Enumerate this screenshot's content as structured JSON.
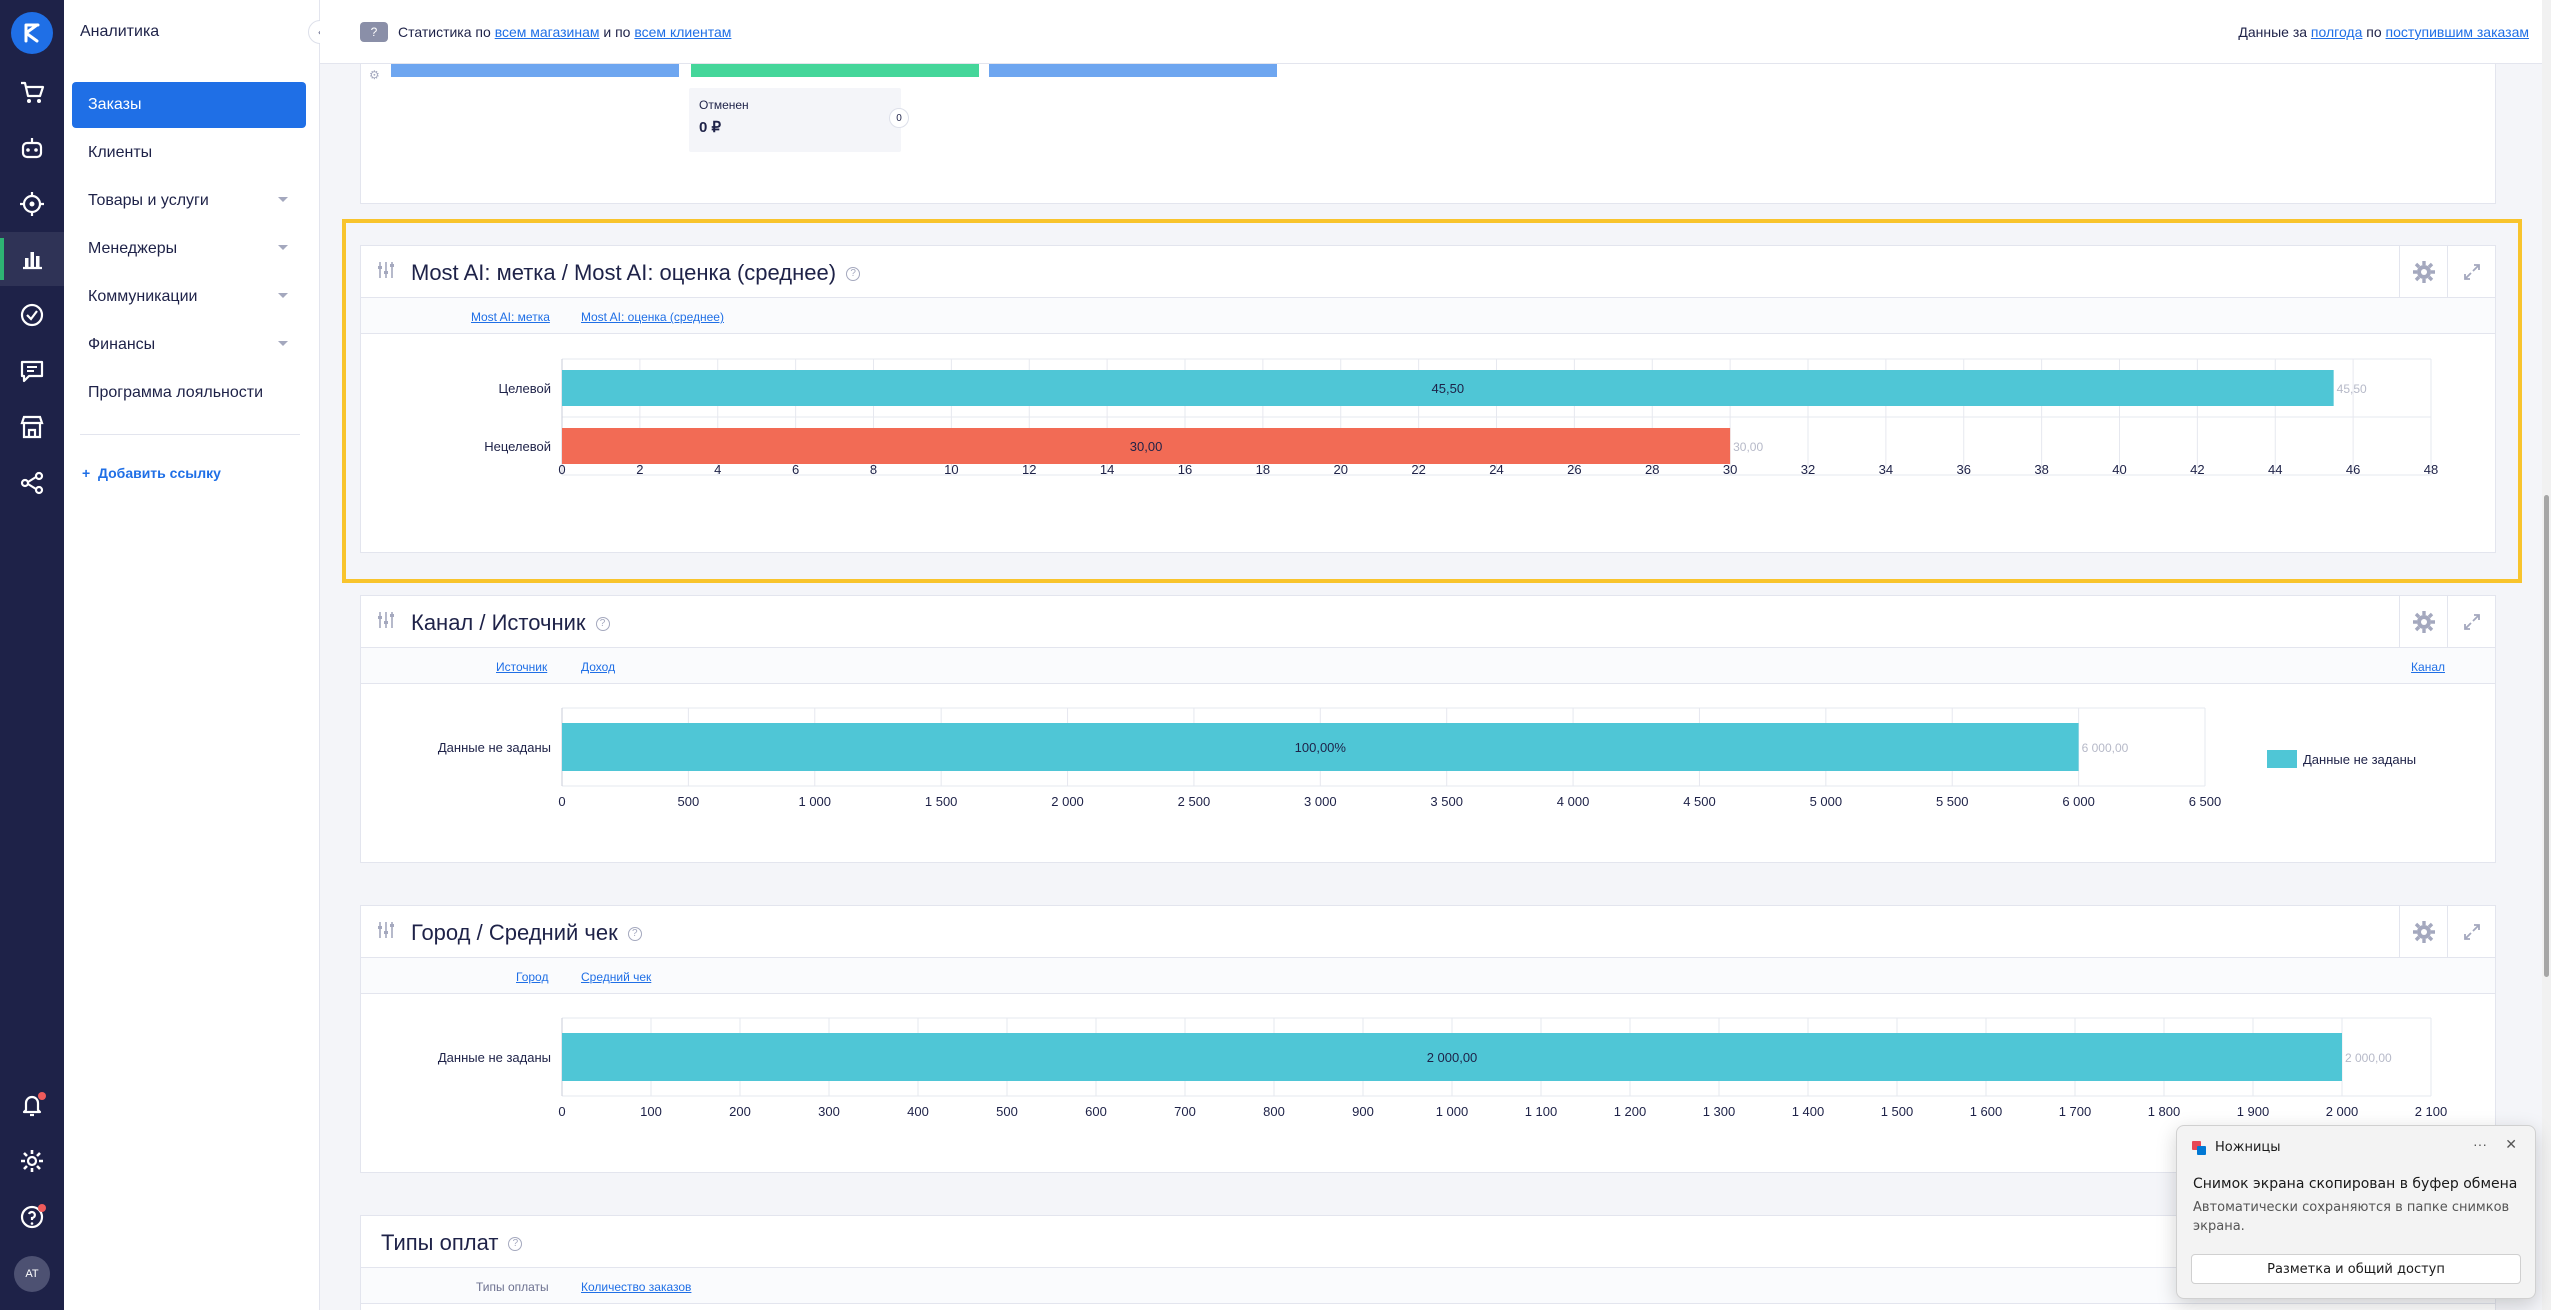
{
  "sidebar": {
    "title": "Аналитика",
    "items": [
      {
        "label": "Заказы",
        "active": true,
        "submenu": false
      },
      {
        "label": "Клиенты",
        "active": false,
        "submenu": false
      },
      {
        "label": "Товары и услуги",
        "active": false,
        "submenu": true
      },
      {
        "label": "Менеджеры",
        "active": false,
        "submenu": true
      },
      {
        "label": "Коммуникации",
        "active": false,
        "submenu": true
      },
      {
        "label": "Финансы",
        "active": false,
        "submenu": true
      },
      {
        "label": "Программа лояльности",
        "active": false,
        "submenu": false
      }
    ],
    "add_link_label": "Добавить ссылку"
  },
  "rail": {
    "icons": [
      "logo-icon",
      "cart-icon",
      "bot-icon",
      "target-icon",
      "chart-icon",
      "check-circle-icon",
      "chat-icon",
      "store-icon",
      "share-icon",
      "bell-icon",
      "gear-icon",
      "help-icon"
    ],
    "avatar_initials": "AT"
  },
  "topbar": {
    "help_label": "?",
    "left_prefix": "Статистика по",
    "left_link1": "всем магазинам",
    "left_and": "и по",
    "left_link2": "всем клиентам",
    "right_prefix": "Данные за",
    "right_link1": "полгода",
    "right_mid": "по",
    "right_link2": "поступившим заказам"
  },
  "top_strip": {
    "tooltip_label": "Отменен",
    "tooltip_value": "0 ₽",
    "badge": "0"
  },
  "cards": [
    {
      "title": "Most AI: метка / Most AI: оценка (среднее)",
      "sub_links": [
        "Most AI: метка",
        "Most AI: оценка (среднее)"
      ]
    },
    {
      "title": "Канал / Источник",
      "sub_links": [
        "Источник",
        "Доход"
      ],
      "sub_right_link": "Канал",
      "legend": [
        "Данные не заданы"
      ]
    },
    {
      "title": "Город / Средний чек",
      "sub_links": [
        "Город",
        "Средний чек"
      ]
    },
    {
      "title": "Типы оплат",
      "sub_plain": "Типы оплаты",
      "sub_links": [
        "Количество заказов"
      ]
    }
  ],
  "colors": {
    "accent": "#1f6fe6",
    "rail": "#1e2248",
    "highlight": "#f8c42d",
    "bar_teal": "#4fc6d6",
    "bar_red": "#f26b55",
    "strip_blue": "#6ea6f0",
    "strip_green": "#45d69a"
  },
  "chart_data": [
    {
      "type": "bar",
      "orientation": "horizontal",
      "categories": [
        "Целевой",
        "Нецелевой"
      ],
      "values": [
        45.5,
        30.0
      ],
      "inner_labels": [
        "45,50",
        "30,00"
      ],
      "outer_labels": [
        "45,50",
        "30,00"
      ],
      "bar_colors": [
        "#4fc6d6",
        "#f26b55"
      ],
      "ticks": [
        "0",
        "2",
        "4",
        "6",
        "8",
        "10",
        "12",
        "14",
        "16",
        "18",
        "20",
        "22",
        "24",
        "26",
        "28",
        "30",
        "32",
        "34",
        "36",
        "38",
        "40",
        "42",
        "44",
        "46",
        "48"
      ],
      "xlim": [
        0,
        48
      ],
      "grid": true
    },
    {
      "type": "bar",
      "orientation": "horizontal",
      "categories": [
        "Данные не заданы"
      ],
      "values": [
        6000
      ],
      "inner_labels": [
        "100,00%"
      ],
      "outer_labels": [
        "6 000,00"
      ],
      "bar_colors": [
        "#4fc6d6"
      ],
      "ticks": [
        "0",
        "500",
        "1 000",
        "1 500",
        "2 000",
        "2 500",
        "3 000",
        "3 500",
        "4 000",
        "4 500",
        "5 000",
        "5 500",
        "6 000",
        "6 500"
      ],
      "xlim": [
        0,
        6500
      ],
      "grid": true,
      "legend": [
        "Данные не заданы"
      ],
      "legend_position": "right"
    },
    {
      "type": "bar",
      "orientation": "horizontal",
      "categories": [
        "Данные не заданы"
      ],
      "values": [
        2000
      ],
      "inner_labels": [
        "2 000,00"
      ],
      "outer_labels": [
        "2 000,00"
      ],
      "bar_colors": [
        "#4fc6d6"
      ],
      "ticks": [
        "0",
        "100",
        "200",
        "300",
        "400",
        "500",
        "600",
        "700",
        "800",
        "900",
        "1 000",
        "1 100",
        "1 200",
        "1 300",
        "1 400",
        "1 500",
        "1 600",
        "1 700",
        "1 800",
        "1 900",
        "2 000",
        "2 100"
      ],
      "xlim": [
        0,
        2100
      ],
      "grid": true
    }
  ],
  "toast": {
    "app": "Ножницы",
    "more": "···",
    "close": "✕",
    "title": "Снимок экрана скопирован в буфер обмена",
    "body": "Автоматически сохраняются в папке снимков экрана.",
    "button": "Разметка и общий доступ"
  }
}
